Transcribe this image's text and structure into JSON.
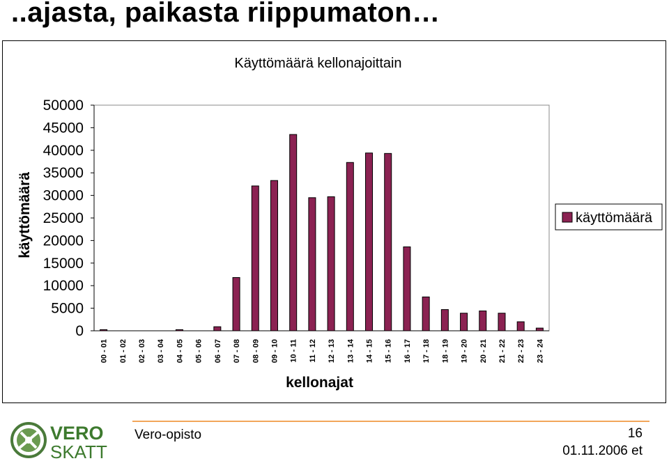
{
  "slide": {
    "title": "..ajasta, paikasta riippumaton…"
  },
  "chart_data": {
    "type": "bar",
    "title": "Käyttömäärä kellonajoittain",
    "xlabel": "kellonajat",
    "ylabel": "käyttömäärä",
    "ylim": [
      0,
      50000
    ],
    "yticks": [
      "50000",
      "45000",
      "40000",
      "35000",
      "30000",
      "25000",
      "20000",
      "15000",
      "10000",
      "5000",
      "0"
    ],
    "grid": false,
    "legend_position": "right",
    "bar_color": "#8B2252",
    "categories": [
      "00 - 01",
      "01 - 02",
      "02 - 03",
      "03 - 04",
      "04 - 05",
      "05 - 06",
      "06 - 07",
      "07 - 08",
      "08 - 09",
      "09 - 10",
      "10 - 11",
      "11 - 12",
      "12 - 13",
      "13 - 14",
      "14 - 15",
      "15 - 16",
      "16 - 17",
      "17 - 18",
      "18 - 19",
      "19 - 20",
      "20 - 21",
      "21 - 22",
      "22 - 23",
      "23 - 24"
    ],
    "series": [
      {
        "name": "käyttömäärä",
        "values": [
          250,
          0,
          0,
          0,
          250,
          0,
          900,
          11800,
          32100,
          33300,
          43500,
          29500,
          29700,
          37300,
          39400,
          39300,
          18600,
          7500,
          4700,
          3900,
          4400,
          3900,
          2000,
          600
        ]
      }
    ]
  },
  "footer": {
    "logo_text_top": "VERO",
    "logo_text_bottom": "SKATT",
    "organization": "Vero-opisto",
    "page_number": "16",
    "date": "01.11.2006 et"
  }
}
